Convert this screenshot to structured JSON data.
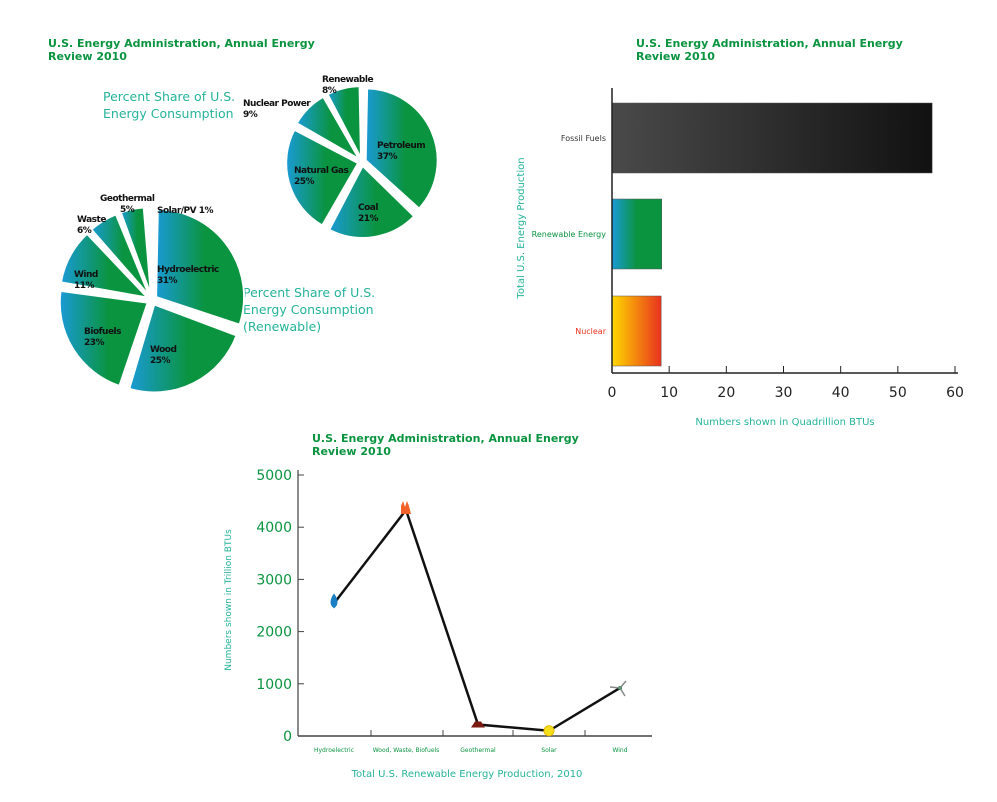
{
  "colors": {
    "title": "#0a9440",
    "subtitle": "#25b39a",
    "pie_from": "#1a9ad6",
    "pie_to": "#0a9440"
  },
  "chart_data": [
    {
      "type": "pie",
      "title": "U.S. Energy Administration, Annual Energy Review 2010",
      "subtitle": [
        "Percent Share of U.S.",
        "Energy Consumption"
      ],
      "slices": [
        {
          "label": "Petroleum",
          "value": 37,
          "value_label": "37%"
        },
        {
          "label": "Coal",
          "value": 21,
          "value_label": "21%"
        },
        {
          "label": "Natural Gas",
          "value": 25,
          "value_label": "25%"
        },
        {
          "label": "Nuclear Power",
          "value": 9,
          "value_label": "9%"
        },
        {
          "label": "Renewable",
          "value": 8,
          "value_label": "8%"
        }
      ]
    },
    {
      "type": "pie",
      "subtitle": [
        "Percent Share of U.S.",
        "Energy Consumption",
        "(Renewable)"
      ],
      "slices": [
        {
          "label": "Hydroelectric",
          "value": 31,
          "value_label": "31%"
        },
        {
          "label": "Wood",
          "value": 25,
          "value_label": "25%"
        },
        {
          "label": "Biofuels",
          "value": 23,
          "value_label": "23%"
        },
        {
          "label": "Wind",
          "value": 11,
          "value_label": "11%"
        },
        {
          "label": "Waste",
          "value": 6,
          "value_label": "6%"
        },
        {
          "label": "Geothermal",
          "value": 5,
          "value_label": "5%"
        },
        {
          "label": "Solar/PV",
          "value": 1,
          "value_label": "1%"
        }
      ]
    },
    {
      "type": "bar",
      "orientation": "horizontal",
      "title": "U.S. Energy Administration, Annual Energy Review 2010",
      "categories": [
        "Fossil Fuels",
        "Renewable Energy",
        "Nuclear"
      ],
      "values": [
        56,
        8.7,
        8.6
      ],
      "category_colors": [
        "#333333",
        "#0a9440",
        "#e8321e"
      ],
      "xlabel": "Numbers shown in Quadrillion BTUs",
      "ylabel": "Total U.S. Energy Production",
      "xlim": [
        0,
        60
      ],
      "xticks": [
        "0",
        "10",
        "20",
        "30",
        "40",
        "50",
        "60"
      ],
      "grid": false
    },
    {
      "type": "line",
      "title": "U.S. Energy Administration, Annual Energy Review 2010",
      "categories": [
        "Hydroelectric",
        "Wood, Waste, Biofuels",
        "Geothermal",
        "Solar",
        "Wind"
      ],
      "markers": [
        "water-drop-icon",
        "fire-icon",
        "volcano-icon",
        "sun-icon",
        "wind-turbine-icon"
      ],
      "values": [
        2540,
        4330,
        220,
        100,
        920
      ],
      "xlabel": "Total U.S. Renewable Energy Production, 2010",
      "ylabel": "Numbers shown in Trillion BTUs",
      "ylim": [
        0,
        5000
      ],
      "yticks": [
        "0",
        "1000",
        "2000",
        "3000",
        "4000",
        "5000"
      ],
      "grid": false
    }
  ]
}
